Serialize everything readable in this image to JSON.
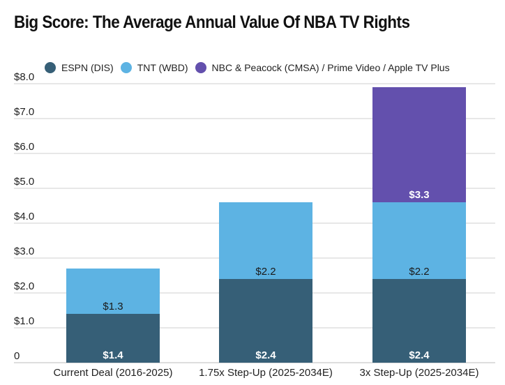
{
  "chart_data": {
    "type": "bar",
    "stacked": true,
    "title": "Big Score: The Average Annual Value Of NBA TV Rights",
    "xlabel": "",
    "ylabel": "",
    "ylim": [
      0,
      8
    ],
    "yticks": [
      0,
      1,
      2,
      3,
      4,
      5,
      6,
      7,
      8
    ],
    "ytick_labels": [
      "0",
      "$1.0",
      "$2.0",
      "$3.0",
      "$4.0",
      "$5.0",
      "$6.0",
      "$7.0",
      "$8.0"
    ],
    "grid": true,
    "legend_position": "top-left",
    "categories": [
      "Current Deal (2016-2025)",
      "1.75x Step-Up (2025-2034E)",
      "3x Step-Up (2025-2034E)"
    ],
    "series": [
      {
        "name": "ESPN (DIS)",
        "color": "#365f77",
        "values": [
          1.4,
          2.4,
          2.4
        ],
        "labels": [
          "$1.4",
          "$2.4",
          "$2.4"
        ],
        "label_color": "#ffffff",
        "label_bold": true
      },
      {
        "name": "TNT (WBD)",
        "color": "#5db3e3",
        "values": [
          1.3,
          2.2,
          2.2
        ],
        "labels": [
          "$1.3",
          "$2.2",
          "$2.2"
        ],
        "label_color": "#1a1a1a",
        "label_bold": false
      },
      {
        "name": "NBC & Peacock (CMSA) / Prime Video / Apple TV Plus",
        "color": "#6350ad",
        "values": [
          0,
          0,
          3.3
        ],
        "labels": [
          "",
          "",
          "$3.3"
        ],
        "label_color": "#ffffff",
        "label_bold": true
      }
    ]
  }
}
